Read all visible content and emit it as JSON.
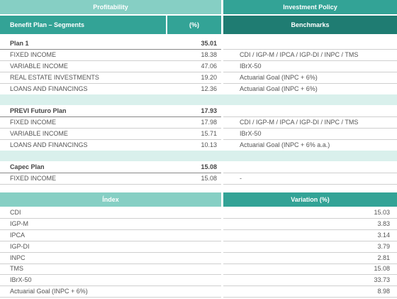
{
  "profitability": {
    "header": "Profitability",
    "columns": [
      "Benefit Plan – Segments",
      "(%)"
    ]
  },
  "investment_policy": {
    "header": "Investment Policy",
    "column": "Benchmarks"
  },
  "plans": [
    {
      "name": "Plan 1",
      "value": "35.01",
      "segments": [
        {
          "name": "FIXED INCOME",
          "value": "18.38",
          "benchmark": "CDI / IGP-M / IPCA / IGP-DI / INPC / TMS"
        },
        {
          "name": "VARIABLE INCOME",
          "value": "47.06",
          "benchmark": "IBrX-50"
        },
        {
          "name": "REAL ESTATE INVESTMENTS",
          "value": "19.20",
          "benchmark": "Actuarial Goal (INPC + 6%)"
        },
        {
          "name": "LOANS AND FINANCINGS",
          "value": "12.36",
          "benchmark": "Actuarial Goal (INPC + 6%)"
        }
      ]
    },
    {
      "name": "PREVI Futuro Plan",
      "value": "17.93",
      "segments": [
        {
          "name": "FIXED INCOME",
          "value": "17.98",
          "benchmark": "CDI / IGP-M / IPCA / IGP-DI / INPC / TMS"
        },
        {
          "name": "VARIABLE INCOME",
          "value": "15.71",
          "benchmark": "IBrX-50"
        },
        {
          "name": "LOANS AND FINANCINGS",
          "value": "10.13",
          "benchmark": "Actuarial Goal (INPC + 6% a.a.)"
        }
      ]
    },
    {
      "name": "Capec Plan",
      "value": "15.08",
      "segments": [
        {
          "name": "FIXED INCOME",
          "value": "15.08",
          "benchmark": "-"
        }
      ]
    }
  ],
  "index_table": {
    "columns": [
      "Índex",
      "Variation (%)"
    ],
    "rows": [
      [
        "CDI",
        "15.03"
      ],
      [
        "IGP-M",
        "3.83"
      ],
      [
        "IPCA",
        "3.14"
      ],
      [
        "IGP-DI",
        "3.79"
      ],
      [
        "INPC",
        "2.81"
      ],
      [
        "TMS",
        "15.08"
      ],
      [
        "IBrX-50",
        "33.73"
      ],
      [
        "Actuarial Goal (INPC + 6%)",
        "8.98"
      ]
    ]
  }
}
